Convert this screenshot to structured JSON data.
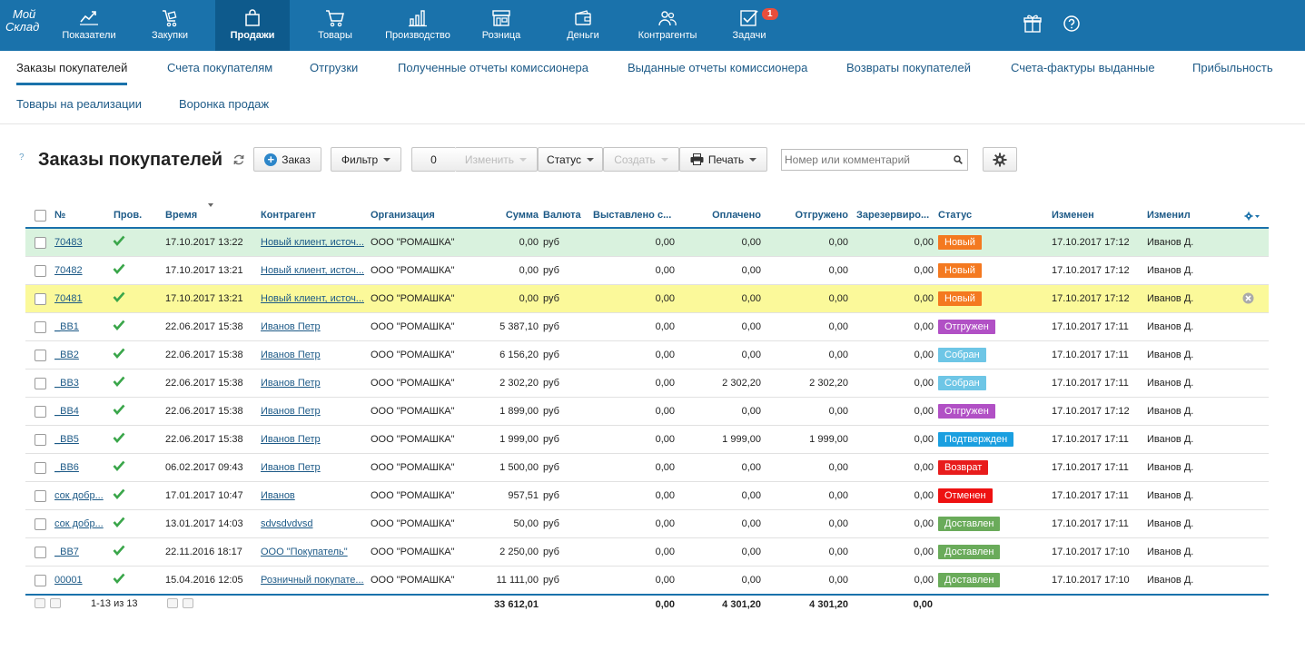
{
  "logo": {
    "line1": "Мой",
    "line2": "Склад"
  },
  "nav": [
    {
      "label": "Показатели",
      "icon": "chart-line-icon"
    },
    {
      "label": "Закупки",
      "icon": "cart-hand-icon"
    },
    {
      "label": "Продажи",
      "icon": "bag-icon",
      "active": true
    },
    {
      "label": "Товары",
      "icon": "cart-icon"
    },
    {
      "label": "Производство",
      "icon": "factory-icon"
    },
    {
      "label": "Розница",
      "icon": "store-icon"
    },
    {
      "label": "Деньги",
      "icon": "wallet-icon"
    },
    {
      "label": "Контрагенты",
      "icon": "people-icon"
    },
    {
      "label": "Задачи",
      "icon": "task-icon",
      "badge": "1"
    }
  ],
  "subnav": [
    "Заказы покупателей",
    "Счета покупателям",
    "Отгрузки",
    "Полученные отчеты комиссионера",
    "Выданные отчеты комиссионера",
    "Возвраты покупателей",
    "Счета-фактуры выданные",
    "Прибыльность",
    "Товары на реализации",
    "Воронка продаж"
  ],
  "page": {
    "help": "?",
    "title": "Заказы покупателей"
  },
  "toolbar": {
    "order": "Заказ",
    "filter": "Фильтр",
    "selected_count": "0",
    "edit": "Изменить",
    "status": "Статус",
    "create": "Создать",
    "print": "Печать",
    "search_placeholder": "Номер или комментарий"
  },
  "columns": {
    "num": "№",
    "checked": "Пров.",
    "time": "Время",
    "counterparty": "Контрагент",
    "organization": "Организация",
    "sum": "Сумма",
    "currency": "Валюта",
    "invoiced": "Выставлено с...",
    "paid": "Оплачено",
    "shipped": "Отгружено",
    "reserved": "Зарезервиро...",
    "status": "Статус",
    "modified": "Изменен",
    "modified_by": "Изменил"
  },
  "rows": [
    {
      "num": "70483",
      "time": "17.10.2017 13:22",
      "cp": "Новый клиент, источ...",
      "org": "ООО \"РОМАШКА\"",
      "sum": "0,00",
      "cur": "руб",
      "inv": "0,00",
      "paid": "0,00",
      "ship": "0,00",
      "res": "0,00",
      "status": "Новый",
      "color": "#f47920",
      "mod": "17.10.2017 17:12",
      "by": "Иванов Д."
    },
    {
      "num": "70482",
      "time": "17.10.2017 13:21",
      "cp": "Новый клиент, источ...",
      "org": "ООО \"РОМАШКА\"",
      "sum": "0,00",
      "cur": "руб",
      "inv": "0,00",
      "paid": "0,00",
      "ship": "0,00",
      "res": "0,00",
      "status": "Новый",
      "color": "#f47920",
      "mod": "17.10.2017 17:12",
      "by": "Иванов Д."
    },
    {
      "num": "70481",
      "time": "17.10.2017 13:21",
      "cp": "Новый клиент, источ...",
      "org": "ООО \"РОМАШКА\"",
      "sum": "0,00",
      "cur": "руб",
      "inv": "0,00",
      "paid": "0,00",
      "ship": "0,00",
      "res": "0,00",
      "status": "Новый",
      "color": "#f47920",
      "mod": "17.10.2017 17:12",
      "by": "Иванов Д."
    },
    {
      "num": "_BB1",
      "time": "22.06.2017 15:38",
      "cp": "Иванов Петр",
      "org": "ООО \"РОМАШКА\"",
      "sum": "5 387,10",
      "cur": "руб",
      "inv": "0,00",
      "paid": "0,00",
      "ship": "0,00",
      "res": "0,00",
      "status": "Отгружен",
      "color": "#b150c5",
      "mod": "17.10.2017 17:11",
      "by": "Иванов Д."
    },
    {
      "num": "_BB2",
      "time": "22.06.2017 15:38",
      "cp": "Иванов Петр",
      "org": "ООО \"РОМАШКА\"",
      "sum": "6 156,20",
      "cur": "руб",
      "inv": "0,00",
      "paid": "0,00",
      "ship": "0,00",
      "res": "0,00",
      "status": "Собран",
      "color": "#6ec6e6",
      "mod": "17.10.2017 17:11",
      "by": "Иванов Д."
    },
    {
      "num": "_BB3",
      "time": "22.06.2017 15:38",
      "cp": "Иванов Петр",
      "org": "ООО \"РОМАШКА\"",
      "sum": "2 302,20",
      "cur": "руб",
      "inv": "0,00",
      "paid": "2 302,20",
      "ship": "2 302,20",
      "res": "0,00",
      "status": "Собран",
      "color": "#6ec6e6",
      "mod": "17.10.2017 17:11",
      "by": "Иванов Д."
    },
    {
      "num": "_BB4",
      "time": "22.06.2017 15:38",
      "cp": "Иванов Петр",
      "org": "ООО \"РОМАШКА\"",
      "sum": "1 899,00",
      "cur": "руб",
      "inv": "0,00",
      "paid": "0,00",
      "ship": "0,00",
      "res": "0,00",
      "status": "Отгружен",
      "color": "#b150c5",
      "mod": "17.10.2017 17:12",
      "by": "Иванов Д."
    },
    {
      "num": "_BB5",
      "time": "22.06.2017 15:38",
      "cp": "Иванов Петр",
      "org": "ООО \"РОМАШКА\"",
      "sum": "1 999,00",
      "cur": "руб",
      "inv": "0,00",
      "paid": "1 999,00",
      "ship": "1 999,00",
      "res": "0,00",
      "status": "Подтвержден",
      "color": "#1a9fe0",
      "mod": "17.10.2017 17:11",
      "by": "Иванов Д."
    },
    {
      "num": "_BB6",
      "time": "06.02.2017 09:43",
      "cp": "Иванов Петр",
      "org": "ООО \"РОМАШКА\"",
      "sum": "1 500,00",
      "cur": "руб",
      "inv": "0,00",
      "paid": "0,00",
      "ship": "0,00",
      "res": "0,00",
      "status": "Возврат",
      "color": "#e81c1c",
      "mod": "17.10.2017 17:11",
      "by": "Иванов Д."
    },
    {
      "num": "сок добр...",
      "time": "17.01.2017 10:47",
      "cp": "Иванов",
      "org": "ООО \"РОМАШКА\"",
      "sum": "957,51",
      "cur": "руб",
      "inv": "0,00",
      "paid": "0,00",
      "ship": "0,00",
      "res": "0,00",
      "status": "Отменен",
      "color": "#ee1111",
      "mod": "17.10.2017 17:11",
      "by": "Иванов Д."
    },
    {
      "num": "сок добр...",
      "time": "13.01.2017 14:03",
      "cp": "sdvsdvdvsd",
      "org": "ООО \"РОМАШКА\"",
      "sum": "50,00",
      "cur": "руб",
      "inv": "0,00",
      "paid": "0,00",
      "ship": "0,00",
      "res": "0,00",
      "status": "Доставлен",
      "color": "#6aab5a",
      "mod": "17.10.2017 17:11",
      "by": "Иванов Д."
    },
    {
      "num": "_BB7",
      "time": "22.11.2016 18:17",
      "cp": "ООО \"Покупатель\"",
      "org": "ООО \"РОМАШКА\"",
      "sum": "2 250,00",
      "cur": "руб",
      "inv": "0,00",
      "paid": "0,00",
      "ship": "0,00",
      "res": "0,00",
      "status": "Доставлен",
      "color": "#6aab5a",
      "mod": "17.10.2017 17:10",
      "by": "Иванов Д."
    },
    {
      "num": "00001",
      "time": "15.04.2016 12:05",
      "cp": "Розничный покупате...",
      "org": "ООО \"РОМАШКА\"",
      "sum": "11 111,00",
      "cur": "руб",
      "inv": "0,00",
      "paid": "0,00",
      "ship": "0,00",
      "res": "0,00",
      "status": "Доставлен",
      "color": "#6aab5a",
      "mod": "17.10.2017 17:10",
      "by": "Иванов Д."
    }
  ],
  "footer": {
    "pager": "1-13 из 13",
    "sum": "33 612,01",
    "inv": "0,00",
    "paid": "4 301,20",
    "ship": "4 301,20",
    "res": "0,00"
  }
}
